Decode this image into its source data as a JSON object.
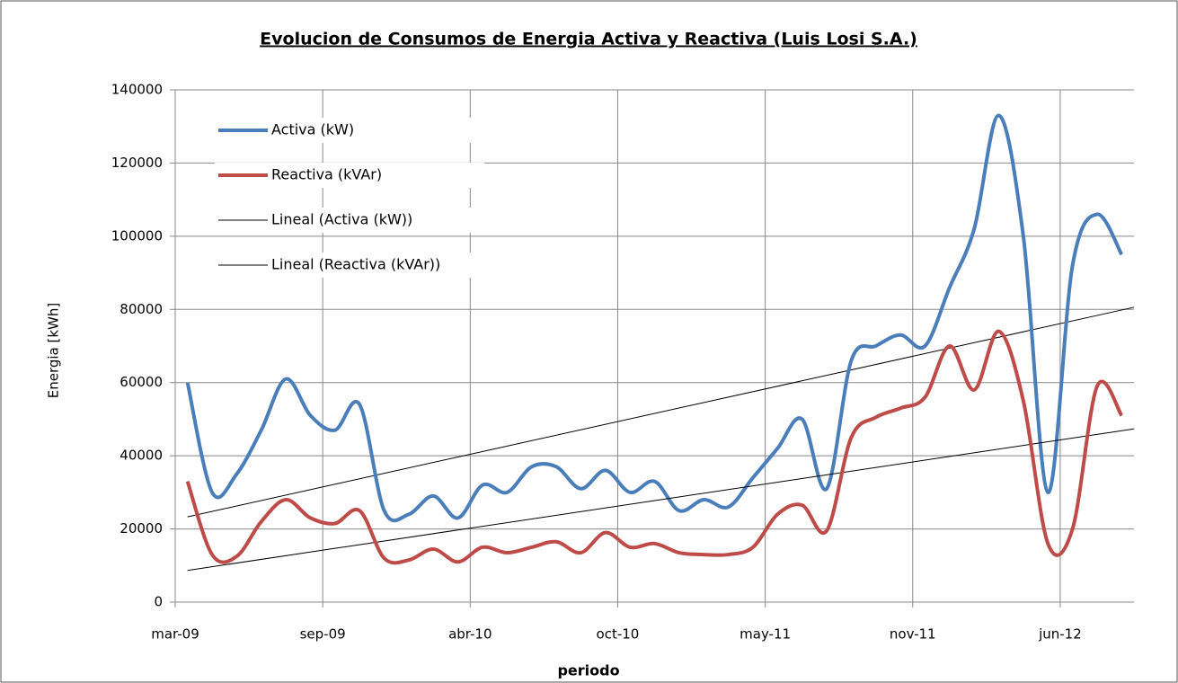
{
  "chart_data": {
    "type": "line",
    "title": "Evolucion de Consumos de Energia Activa y Reactiva (Luis Losi S.A.)",
    "x_label": "periodo",
    "y_label": "Energia [kWh]",
    "categories": [
      "mar-09",
      null,
      null,
      null,
      null,
      null,
      "sep-09",
      null,
      null,
      null,
      null,
      null,
      "abr-10",
      null,
      null,
      null,
      null,
      null,
      "oct-10",
      null,
      null,
      null,
      null,
      null,
      "may-11",
      null,
      null,
      null,
      null,
      null,
      "nov-11",
      null,
      null,
      null,
      null,
      null,
      "jun-12",
      null,
      null
    ],
    "series": [
      {
        "name": "Activa (kW)",
        "color": "#4a7ebb",
        "values": [
          60000,
          30000,
          35000,
          47000,
          61000,
          51000,
          47000,
          54000,
          25000,
          24000,
          29000,
          23000,
          32000,
          30000,
          37000,
          37000,
          31000,
          36000,
          30000,
          33000,
          25000,
          28000,
          26000,
          34000,
          42000,
          50000,
          31000,
          66000,
          70000,
          73000,
          70000,
          86000,
          102000,
          133000,
          100000,
          30000,
          92000,
          106000,
          95000
        ],
        "trendline": {
          "name": "Lineal (Activa (kW))",
          "color": "#000000"
        }
      },
      {
        "name": "Reactiva (kVAr)",
        "color": "#be4b48",
        "values": [
          33000,
          13000,
          12500,
          22000,
          28000,
          23000,
          21500,
          25000,
          12000,
          11500,
          14500,
          11000,
          15000,
          13500,
          15000,
          16500,
          13500,
          19000,
          15000,
          16000,
          13500,
          13000,
          13000,
          15000,
          24000,
          26500,
          19500,
          45000,
          50500,
          53000,
          56000,
          70000,
          58000,
          74000,
          55000,
          16000,
          20000,
          59000,
          51000
        ],
        "trendline": {
          "name": "Lineal (Reactiva (kVAr))",
          "color": "#000000"
        }
      }
    ],
    "ylim": [
      0,
      140000
    ],
    "yticks": [
      0,
      20000,
      40000,
      60000,
      80000,
      100000,
      120000,
      140000
    ],
    "grid": true,
    "legend": "upper left"
  }
}
